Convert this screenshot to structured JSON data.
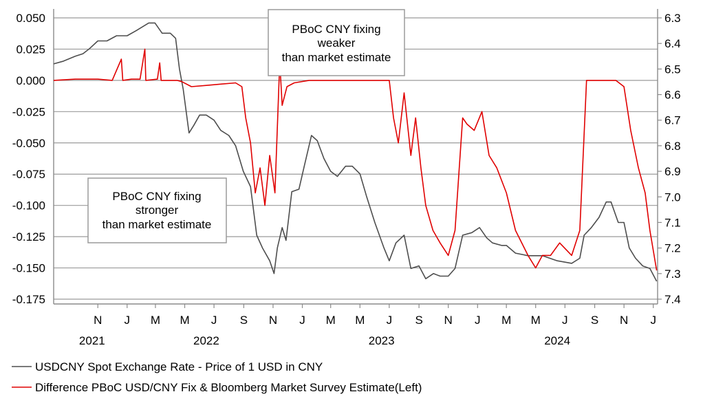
{
  "colors": {
    "spot": "#4d4d4d",
    "diff": "#e00000",
    "grid": "#9a9a9a",
    "axis": "#8a8a8a",
    "box": "#9a9a9a"
  },
  "chart_data": {
    "type": "line",
    "x_start": "2021-08-01",
    "x_end": "2025-01-10",
    "left_axis": {
      "ylim": [
        -0.175,
        0.05
      ],
      "ticks": [
        0.05,
        0.025,
        0.0,
        -0.025,
        -0.05,
        -0.075,
        -0.1,
        -0.125,
        -0.15,
        -0.175
      ],
      "tick_labels": [
        "0.050",
        "0.025",
        "0.000",
        "-0.025",
        "-0.050",
        "-0.075",
        "-0.100",
        "-0.125",
        "-0.150",
        "-0.175"
      ]
    },
    "right_axis": {
      "ylim": [
        6.3,
        7.4
      ],
      "inverted": true,
      "ticks": [
        6.3,
        6.4,
        6.5,
        6.6,
        6.7,
        6.8,
        6.9,
        7.0,
        7.1,
        7.2,
        7.3,
        7.4
      ],
      "tick_labels": [
        "6.3",
        "6.4",
        "6.5",
        "6.6",
        "6.7",
        "6.8",
        "6.9",
        "7.0",
        "7.1",
        "7.2",
        "7.3",
        "7.4"
      ]
    },
    "x_ticks": [
      {
        "date": "2021-11-01",
        "label": "N"
      },
      {
        "date": "2022-01-01",
        "label": "J"
      },
      {
        "date": "2022-03-01",
        "label": "M"
      },
      {
        "date": "2022-05-01",
        "label": "M"
      },
      {
        "date": "2022-07-01",
        "label": "J"
      },
      {
        "date": "2022-09-01",
        "label": "S"
      },
      {
        "date": "2022-11-01",
        "label": "N"
      },
      {
        "date": "2023-01-01",
        "label": "J"
      },
      {
        "date": "2023-03-01",
        "label": "M"
      },
      {
        "date": "2023-05-01",
        "label": "M"
      },
      {
        "date": "2023-07-01",
        "label": "J"
      },
      {
        "date": "2023-09-01",
        "label": "S"
      },
      {
        "date": "2023-11-01",
        "label": "N"
      },
      {
        "date": "2024-01-01",
        "label": "J"
      },
      {
        "date": "2024-03-01",
        "label": "M"
      },
      {
        "date": "2024-05-01",
        "label": "M"
      },
      {
        "date": "2024-07-01",
        "label": "J"
      },
      {
        "date": "2024-09-01",
        "label": "S"
      },
      {
        "date": "2024-11-01",
        "label": "N"
      },
      {
        "date": "2025-01-01",
        "label": "J"
      }
    ],
    "year_labels": [
      {
        "date": "2021-10-20",
        "label": "2021"
      },
      {
        "date": "2022-06-15",
        "label": "2022"
      },
      {
        "date": "2023-06-15",
        "label": "2023"
      },
      {
        "date": "2024-06-15",
        "label": "2024"
      }
    ],
    "grid": true,
    "series": [
      {
        "name": "USDCNY Spot Exchange Rate - Price of 1 USD in CNY",
        "axis": "right",
        "points": [
          [
            "2021-08-01",
            6.48
          ],
          [
            "2021-08-20",
            6.47
          ],
          [
            "2021-09-15",
            6.45
          ],
          [
            "2021-10-01",
            6.44
          ],
          [
            "2021-10-15",
            6.42
          ],
          [
            "2021-11-01",
            6.39
          ],
          [
            "2021-11-20",
            6.39
          ],
          [
            "2021-12-10",
            6.37
          ],
          [
            "2022-01-01",
            6.37
          ],
          [
            "2022-01-20",
            6.35
          ],
          [
            "2022-02-15",
            6.32
          ],
          [
            "2022-02-28",
            6.32
          ],
          [
            "2022-03-15",
            6.36
          ],
          [
            "2022-04-01",
            6.36
          ],
          [
            "2022-04-12",
            6.38
          ],
          [
            "2022-04-20",
            6.5
          ],
          [
            "2022-04-28",
            6.58
          ],
          [
            "2022-05-10",
            6.75
          ],
          [
            "2022-05-20",
            6.72
          ],
          [
            "2022-06-01",
            6.68
          ],
          [
            "2022-06-15",
            6.68
          ],
          [
            "2022-07-01",
            6.7
          ],
          [
            "2022-07-15",
            6.74
          ],
          [
            "2022-08-01",
            6.76
          ],
          [
            "2022-08-15",
            6.8
          ],
          [
            "2022-08-31",
            6.9
          ],
          [
            "2022-09-15",
            6.96
          ],
          [
            "2022-09-28",
            7.15
          ],
          [
            "2022-10-10",
            7.2
          ],
          [
            "2022-10-25",
            7.25
          ],
          [
            "2022-11-03",
            7.3
          ],
          [
            "2022-11-10",
            7.2
          ],
          [
            "2022-11-20",
            7.12
          ],
          [
            "2022-11-28",
            7.17
          ],
          [
            "2022-12-10",
            6.98
          ],
          [
            "2022-12-25",
            6.97
          ],
          [
            "2023-01-05",
            6.88
          ],
          [
            "2023-01-20",
            6.76
          ],
          [
            "2023-02-01",
            6.78
          ],
          [
            "2023-02-15",
            6.85
          ],
          [
            "2023-03-01",
            6.9
          ],
          [
            "2023-03-15",
            6.92
          ],
          [
            "2023-04-01",
            6.88
          ],
          [
            "2023-04-15",
            6.88
          ],
          [
            "2023-05-01",
            6.91
          ],
          [
            "2023-05-15",
            7.0
          ],
          [
            "2023-06-01",
            7.1
          ],
          [
            "2023-06-20",
            7.2
          ],
          [
            "2023-07-01",
            7.25
          ],
          [
            "2023-07-15",
            7.18
          ],
          [
            "2023-08-01",
            7.15
          ],
          [
            "2023-08-15",
            7.28
          ],
          [
            "2023-09-01",
            7.27
          ],
          [
            "2023-09-15",
            7.32
          ],
          [
            "2023-10-01",
            7.3
          ],
          [
            "2023-10-15",
            7.31
          ],
          [
            "2023-11-01",
            7.31
          ],
          [
            "2023-11-15",
            7.28
          ],
          [
            "2023-12-01",
            7.15
          ],
          [
            "2023-12-20",
            7.14
          ],
          [
            "2024-01-05",
            7.12
          ],
          [
            "2024-01-20",
            7.16
          ],
          [
            "2024-02-01",
            7.18
          ],
          [
            "2024-02-20",
            7.19
          ],
          [
            "2024-03-01",
            7.19
          ],
          [
            "2024-03-20",
            7.22
          ],
          [
            "2024-04-15",
            7.23
          ],
          [
            "2024-05-15",
            7.23
          ],
          [
            "2024-06-15",
            7.25
          ],
          [
            "2024-07-15",
            7.26
          ],
          [
            "2024-08-01",
            7.24
          ],
          [
            "2024-08-10",
            7.15
          ],
          [
            "2024-08-25",
            7.12
          ],
          [
            "2024-09-10",
            7.08
          ],
          [
            "2024-09-25",
            7.02
          ],
          [
            "2024-10-05",
            7.02
          ],
          [
            "2024-10-20",
            7.1
          ],
          [
            "2024-11-01",
            7.1
          ],
          [
            "2024-11-12",
            7.2
          ],
          [
            "2024-11-25",
            7.24
          ],
          [
            "2024-12-10",
            7.27
          ],
          [
            "2024-12-25",
            7.28
          ],
          [
            "2025-01-08",
            7.33
          ]
        ]
      },
      {
        "name": "Difference PBoC USD/CNY Fix & Bloomberg Market Survey Estimate(Left)",
        "axis": "left",
        "points": [
          [
            "2021-08-01",
            0.0
          ],
          [
            "2021-09-15",
            0.001
          ],
          [
            "2021-11-01",
            0.001
          ],
          [
            "2021-12-01",
            0.0
          ],
          [
            "2021-12-20",
            0.017
          ],
          [
            "2021-12-23",
            0.0
          ],
          [
            "2022-01-10",
            0.001
          ],
          [
            "2022-01-28",
            0.001
          ],
          [
            "2022-02-07",
            0.025
          ],
          [
            "2022-02-09",
            0.0
          ],
          [
            "2022-03-05",
            0.001
          ],
          [
            "2022-03-10",
            0.014
          ],
          [
            "2022-03-13",
            0.0
          ],
          [
            "2022-04-15",
            0.0
          ],
          [
            "2022-04-25",
            -0.001
          ],
          [
            "2022-05-15",
            -0.005
          ],
          [
            "2022-06-15",
            -0.004
          ],
          [
            "2022-07-15",
            -0.003
          ],
          [
            "2022-08-15",
            -0.002
          ],
          [
            "2022-08-28",
            -0.005
          ],
          [
            "2022-09-05",
            -0.03
          ],
          [
            "2022-09-15",
            -0.05
          ],
          [
            "2022-09-25",
            -0.09
          ],
          [
            "2022-10-05",
            -0.07
          ],
          [
            "2022-10-15",
            -0.1
          ],
          [
            "2022-10-25",
            -0.06
          ],
          [
            "2022-11-05",
            -0.09
          ],
          [
            "2022-11-15",
            0.015
          ],
          [
            "2022-11-20",
            -0.02
          ],
          [
            "2022-11-30",
            -0.005
          ],
          [
            "2022-12-15",
            -0.002
          ],
          [
            "2023-01-15",
            0.0
          ],
          [
            "2023-03-01",
            0.0
          ],
          [
            "2023-05-01",
            0.0
          ],
          [
            "2023-06-15",
            0.0
          ],
          [
            "2023-07-01",
            0.0
          ],
          [
            "2023-07-10",
            -0.03
          ],
          [
            "2023-07-20",
            -0.05
          ],
          [
            "2023-08-01",
            -0.01
          ],
          [
            "2023-08-15",
            -0.06
          ],
          [
            "2023-08-25",
            -0.03
          ],
          [
            "2023-09-05",
            -0.07
          ],
          [
            "2023-09-15",
            -0.1
          ],
          [
            "2023-09-30",
            -0.12
          ],
          [
            "2023-10-15",
            -0.13
          ],
          [
            "2023-11-01",
            -0.14
          ],
          [
            "2023-11-15",
            -0.12
          ],
          [
            "2023-12-01",
            -0.03
          ],
          [
            "2023-12-10",
            -0.035
          ],
          [
            "2023-12-25",
            -0.04
          ],
          [
            "2024-01-10",
            -0.025
          ],
          [
            "2024-01-25",
            -0.06
          ],
          [
            "2024-02-10",
            -0.07
          ],
          [
            "2024-03-01",
            -0.09
          ],
          [
            "2024-03-20",
            -0.12
          ],
          [
            "2024-04-15",
            -0.14
          ],
          [
            "2024-05-01",
            -0.15
          ],
          [
            "2024-05-15",
            -0.14
          ],
          [
            "2024-06-01",
            -0.14
          ],
          [
            "2024-06-20",
            -0.13
          ],
          [
            "2024-07-15",
            -0.14
          ],
          [
            "2024-08-01",
            -0.12
          ],
          [
            "2024-08-15",
            0.0
          ],
          [
            "2024-09-15",
            0.0
          ],
          [
            "2024-10-15",
            0.0
          ],
          [
            "2024-11-01",
            -0.005
          ],
          [
            "2024-11-15",
            -0.04
          ],
          [
            "2024-12-01",
            -0.07
          ],
          [
            "2024-12-15",
            -0.09
          ],
          [
            "2024-12-25",
            -0.12
          ],
          [
            "2025-01-08",
            -0.152
          ]
        ]
      }
    ],
    "annotations": [
      {
        "name": "weaker-box",
        "lines": [
          "PBoC CNY fixing",
          "weaker",
          "than market estimate"
        ]
      },
      {
        "name": "stronger-box",
        "lines": [
          "PBoC CNY fixing",
          "stronger",
          "than market estimate"
        ]
      }
    ],
    "legend": [
      {
        "label": "USDCNY Spot Exchange Rate - Price of 1 USD in CNY",
        "color": "#4d4d4d"
      },
      {
        "label": "Difference PBoC USD/CNY Fix & Bloomberg Market Survey Estimate(Left)",
        "color": "#e00000"
      }
    ]
  }
}
